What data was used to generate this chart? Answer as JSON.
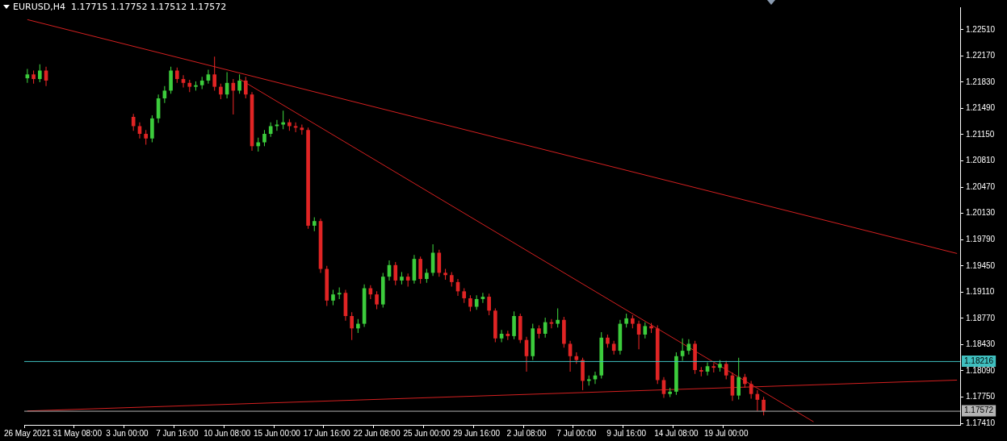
{
  "chart_data": {
    "type": "candlestick",
    "title": "EURUSD,H4  1.17715 1.17752 1.17512 1.17572",
    "categories": [
      "26 May 2021",
      null,
      null,
      null,
      null,
      null,
      null,
      null,
      "31 May 08:00",
      null,
      null,
      null,
      null,
      null,
      null,
      null,
      "3 Jun 00:00",
      null,
      null,
      null,
      null,
      null,
      null,
      null,
      "7 Jun 16:00",
      null,
      null,
      null,
      null,
      null,
      null,
      null,
      "10 Jun 08:00",
      null,
      null,
      null,
      null,
      null,
      null,
      null,
      "15 Jun 00:00",
      null,
      null,
      null,
      null,
      null,
      null,
      null,
      "17 Jun 16:00",
      null,
      null,
      null,
      null,
      null,
      null,
      null,
      "22 Jun 08:00",
      null,
      null,
      null,
      null,
      null,
      null,
      null,
      "25 Jun 00:00",
      null,
      null,
      null,
      null,
      null,
      null,
      null,
      "29 Jun 16:00",
      null,
      null,
      null,
      null,
      null,
      null,
      null,
      "2 Jul 08:00",
      null,
      null,
      null,
      null,
      null,
      null,
      null,
      "7 Jul 00:00",
      null,
      null,
      null,
      null,
      null,
      null,
      null,
      "9 Jul 16:00",
      null,
      null,
      null,
      null,
      null,
      null,
      null,
      "14 Jul 08:00",
      null,
      null,
      null,
      null,
      null,
      null,
      null,
      "19 Jul 00:00",
      null,
      null,
      null,
      null,
      null,
      null,
      null,
      null,
      null,
      null,
      null,
      null,
      null,
      null,
      null,
      null,
      null,
      null,
      null,
      null,
      null,
      null,
      null,
      null,
      null,
      null,
      null,
      null,
      null,
      null,
      null,
      null,
      null,
      null,
      null,
      null,
      null
    ],
    "ohlc": [
      [
        1.2188,
        1.22,
        1.2182,
        1.2193
      ],
      [
        1.2193,
        1.2198,
        1.2181,
        1.2187
      ],
      [
        1.2187,
        1.2206,
        1.2183,
        1.2198
      ],
      [
        1.2198,
        1.2203,
        1.2178,
        1.2185
      ],
      null,
      null,
      null,
      null,
      null,
      null,
      null,
      null,
      null,
      null,
      null,
      null,
      null,
      [
        1.2138,
        1.2142,
        1.212,
        1.2126
      ],
      [
        1.2126,
        1.2131,
        1.211,
        1.2116
      ],
      [
        1.2116,
        1.2121,
        1.2102,
        1.211
      ],
      [
        1.211,
        1.214,
        1.2105,
        1.2136
      ],
      [
        1.2136,
        1.2167,
        1.213,
        1.2162
      ],
      [
        1.2162,
        1.2178,
        1.2156,
        1.2172
      ],
      [
        1.2172,
        1.2203,
        1.2168,
        1.2198
      ],
      [
        1.2198,
        1.2202,
        1.2182,
        1.2187
      ],
      [
        1.2187,
        1.2192,
        1.2176,
        1.2182
      ],
      [
        1.2182,
        1.2186,
        1.217,
        1.2177
      ],
      [
        1.2177,
        1.2184,
        1.2172,
        1.2179
      ],
      [
        1.2179,
        1.219,
        1.2174,
        1.2185
      ],
      [
        1.2185,
        1.2199,
        1.2181,
        1.2193
      ],
      [
        1.2193,
        1.2216,
        1.2172,
        1.2177
      ],
      [
        1.2177,
        1.2181,
        1.2161,
        1.2167
      ],
      [
        1.2167,
        1.2196,
        1.2162,
        1.2182
      ],
      [
        1.2182,
        1.2187,
        1.2141,
        1.2172
      ],
      [
        1.2172,
        1.2193,
        1.2168,
        1.2185
      ],
      [
        1.2185,
        1.219,
        1.2162,
        1.2167
      ],
      [
        1.2167,
        1.217,
        1.2094,
        1.21
      ],
      [
        1.21,
        1.2111,
        1.2093,
        1.2105
      ],
      [
        1.2105,
        1.2121,
        1.21,
        1.2116
      ],
      [
        1.2116,
        1.2131,
        1.2112,
        1.2126
      ],
      [
        1.2126,
        1.2134,
        1.212,
        1.2128
      ],
      [
        1.2128,
        1.2146,
        1.2122,
        1.2131
      ],
      [
        1.2131,
        1.2135,
        1.212,
        1.2126
      ],
      [
        1.2126,
        1.2131,
        1.2118,
        1.2124
      ],
      [
        1.2124,
        1.2128,
        1.2115,
        1.2121
      ],
      [
        1.2121,
        1.2124,
        1.1993,
        1.1997
      ],
      [
        1.1997,
        1.2008,
        1.199,
        1.2003
      ],
      [
        1.2003,
        1.2006,
        1.1936,
        1.1941
      ],
      [
        1.1941,
        1.1945,
        1.1893,
        1.19
      ],
      [
        1.19,
        1.1914,
        1.1894,
        1.1908
      ],
      [
        1.1908,
        1.1917,
        1.1902,
        1.191
      ],
      [
        1.191,
        1.1914,
        1.1874,
        1.188
      ],
      [
        1.188,
        1.1885,
        1.1849,
        1.1864
      ],
      [
        1.1864,
        1.1876,
        1.1858,
        1.187
      ],
      [
        1.187,
        1.1921,
        1.1866,
        1.1916
      ],
      [
        1.1916,
        1.192,
        1.1902,
        1.1908
      ],
      [
        1.1908,
        1.1912,
        1.1889,
        1.1895
      ],
      [
        1.1895,
        1.1936,
        1.1891,
        1.1931
      ],
      [
        1.1931,
        1.1952,
        1.1926,
        1.1946
      ],
      [
        1.1946,
        1.195,
        1.192,
        1.1926
      ],
      [
        1.1926,
        1.1937,
        1.1921,
        1.1931
      ],
      [
        1.1931,
        1.1935,
        1.1918,
        1.1926
      ],
      [
        1.1926,
        1.1959,
        1.1922,
        1.1954
      ],
      [
        1.1954,
        1.1957,
        1.1922,
        1.1928
      ],
      [
        1.1928,
        1.1941,
        1.1923,
        1.1936
      ],
      [
        1.1936,
        1.1973,
        1.1932,
        1.1962
      ],
      [
        1.1962,
        1.1966,
        1.1931,
        1.1936
      ],
      [
        1.1936,
        1.1941,
        1.1927,
        1.1933
      ],
      [
        1.1933,
        1.1937,
        1.1918,
        1.1924
      ],
      [
        1.1924,
        1.1928,
        1.1906,
        1.1912
      ],
      [
        1.1912,
        1.1916,
        1.1897,
        1.1903
      ],
      [
        1.1903,
        1.1907,
        1.1886,
        1.1892
      ],
      [
        1.1892,
        1.1907,
        1.1888,
        1.1902
      ],
      [
        1.1902,
        1.191,
        1.1897,
        1.1905
      ],
      [
        1.1905,
        1.1909,
        1.1881,
        1.1887
      ],
      [
        1.1887,
        1.189,
        1.1846,
        1.1851
      ],
      [
        1.1851,
        1.1862,
        1.1846,
        1.1857
      ],
      [
        1.1857,
        1.1861,
        1.1849,
        1.1854
      ],
      [
        1.1854,
        1.1886,
        1.185,
        1.188
      ],
      [
        1.188,
        1.1883,
        1.1845,
        1.1849
      ],
      [
        1.1849,
        1.1853,
        1.1808,
        1.1828
      ],
      [
        1.1828,
        1.187,
        1.1823,
        1.1864
      ],
      [
        1.1864,
        1.1868,
        1.1851,
        1.1857
      ],
      [
        1.1857,
        1.1878,
        1.1852,
        1.1872
      ],
      [
        1.1872,
        1.1876,
        1.1864,
        1.187
      ],
      [
        1.187,
        1.189,
        1.1865,
        1.1875
      ],
      [
        1.1875,
        1.1879,
        1.1839,
        1.1844
      ],
      [
        1.1844,
        1.1848,
        1.1808,
        1.1828
      ],
      [
        1.1828,
        1.1833,
        1.1818,
        1.1823
      ],
      [
        1.1823,
        1.1826,
        1.1784,
        1.1796
      ],
      [
        1.1796,
        1.1803,
        1.179,
        1.1798
      ],
      [
        1.1798,
        1.1808,
        1.1792,
        1.1803
      ],
      [
        1.1803,
        1.1859,
        1.1799,
        1.1852
      ],
      [
        1.1852,
        1.1856,
        1.1839,
        1.1844
      ],
      [
        1.1844,
        1.1848,
        1.183,
        1.1835
      ],
      [
        1.1835,
        1.1875,
        1.183,
        1.187
      ],
      [
        1.187,
        1.1883,
        1.1865,
        1.1877
      ],
      [
        1.1877,
        1.1881,
        1.1864,
        1.187
      ],
      [
        1.187,
        1.1874,
        1.1837,
        1.1856
      ],
      [
        1.1856,
        1.1872,
        1.1851,
        1.1867
      ],
      [
        1.1867,
        1.1871,
        1.1858,
        1.1864
      ],
      [
        1.1864,
        1.1868,
        1.1792,
        1.1797
      ],
      [
        1.1797,
        1.1801,
        1.1774,
        1.1779
      ],
      [
        1.1779,
        1.1787,
        1.1775,
        1.1782
      ],
      [
        1.1782,
        1.1833,
        1.1778,
        1.1828
      ],
      [
        1.1828,
        1.1851,
        1.1822,
        1.1835
      ],
      [
        1.1835,
        1.185,
        1.183,
        1.1844
      ],
      [
        1.1844,
        1.1848,
        1.1805,
        1.181
      ],
      [
        1.181,
        1.1814,
        1.1802,
        1.1808
      ],
      [
        1.1808,
        1.182,
        1.1803,
        1.1815
      ],
      [
        1.1815,
        1.1819,
        1.1807,
        1.1813
      ],
      [
        1.1813,
        1.1823,
        1.1808,
        1.1818
      ],
      [
        1.1818,
        1.1822,
        1.1798,
        1.1803
      ],
      [
        1.1803,
        1.1807,
        1.177,
        1.1777
      ],
      [
        1.1777,
        1.1826,
        1.1772,
        1.1801
      ],
      [
        1.1801,
        1.1805,
        1.1787,
        1.1792
      ],
      [
        1.1792,
        1.1796,
        1.1773,
        1.1779
      ],
      [
        1.1779,
        1.1784,
        1.1757,
        1.17715
      ],
      [
        1.17715,
        1.17752,
        1.17512,
        1.17572
      ],
      null,
      null,
      null,
      null,
      null,
      null,
      null,
      null,
      null,
      null,
      null,
      null,
      null,
      null,
      null,
      null,
      null,
      null,
      null,
      null,
      null,
      null,
      null,
      null,
      null,
      null,
      null,
      null,
      null,
      null,
      null
    ],
    "series": [
      {
        "type": "line",
        "color": "#d42020",
        "values": [
          1.2264,
          null,
          null,
          null,
          null,
          null,
          null,
          null,
          null,
          null,
          null,
          null,
          null,
          null,
          null,
          null,
          null,
          null,
          null,
          null,
          null,
          null,
          null,
          null,
          null,
          null,
          null,
          null,
          null,
          null,
          null,
          null,
          null,
          null,
          null,
          null,
          null,
          null,
          null,
          null,
          null,
          null,
          null,
          null,
          null,
          null,
          null,
          null,
          null,
          null,
          null,
          null,
          null,
          null,
          null,
          null,
          null,
          null,
          null,
          null,
          null,
          null,
          null,
          null,
          null,
          null,
          null,
          null,
          null,
          null,
          null,
          null,
          null,
          null,
          null,
          null,
          null,
          null,
          null,
          null,
          null,
          null,
          null,
          null,
          null,
          null,
          null,
          null,
          null,
          null,
          null,
          null,
          null,
          null,
          null,
          null,
          null,
          null,
          null,
          null,
          null,
          null,
          null,
          null,
          null,
          null,
          null,
          null,
          null,
          null,
          null,
          null,
          null,
          null,
          null,
          null,
          null,
          null,
          null,
          null,
          null,
          null,
          null,
          null,
          null,
          null,
          null,
          null,
          null,
          null,
          null,
          null,
          null,
          null,
          null,
          null,
          null,
          null,
          null,
          null,
          null,
          null,
          null,
          null,
          null,
          null,
          null,
          null,
          null,
          1.1961
        ]
      },
      {
        "type": "line",
        "color": "#d42020",
        "values": [
          null,
          null,
          null,
          null,
          null,
          null,
          null,
          null,
          null,
          null,
          null,
          null,
          null,
          null,
          null,
          null,
          null,
          null,
          null,
          null,
          null,
          null,
          null,
          null,
          null,
          null,
          null,
          null,
          null,
          null,
          null,
          null,
          null,
          null,
          1.2187,
          null,
          null,
          null,
          null,
          null,
          null,
          null,
          null,
          null,
          null,
          null,
          null,
          null,
          null,
          null,
          null,
          null,
          null,
          null,
          null,
          null,
          null,
          null,
          null,
          null,
          null,
          null,
          null,
          null,
          null,
          null,
          null,
          null,
          null,
          null,
          null,
          null,
          null,
          null,
          null,
          null,
          null,
          null,
          null,
          null,
          null,
          null,
          null,
          null,
          null,
          null,
          null,
          null,
          null,
          null,
          null,
          null,
          null,
          null,
          null,
          null,
          null,
          null,
          null,
          null,
          null,
          null,
          null,
          null,
          null,
          null,
          null,
          null,
          null,
          null,
          null,
          null,
          null,
          null,
          null,
          null,
          null,
          null,
          null,
          null,
          null,
          null,
          null,
          null,
          null,
          null,
          1.1743,
          null,
          null,
          null,
          null,
          null,
          null,
          null,
          null,
          null,
          null,
          null,
          null,
          null,
          null,
          null,
          null,
          null,
          null,
          null,
          null,
          null,
          null,
          null
        ]
      },
      {
        "type": "line",
        "color": "#d42020",
        "values": [
          1.1757,
          null,
          null,
          null,
          null,
          null,
          null,
          null,
          null,
          null,
          null,
          null,
          null,
          null,
          null,
          null,
          null,
          null,
          null,
          null,
          null,
          null,
          null,
          null,
          null,
          null,
          null,
          null,
          null,
          null,
          null,
          null,
          null,
          null,
          null,
          null,
          null,
          null,
          null,
          null,
          null,
          null,
          null,
          null,
          null,
          null,
          null,
          null,
          null,
          null,
          null,
          null,
          null,
          null,
          null,
          null,
          null,
          null,
          null,
          null,
          null,
          null,
          null,
          null,
          null,
          null,
          null,
          null,
          null,
          null,
          null,
          null,
          null,
          null,
          null,
          null,
          null,
          null,
          null,
          null,
          null,
          null,
          null,
          null,
          null,
          null,
          null,
          null,
          null,
          null,
          null,
          null,
          null,
          null,
          null,
          null,
          null,
          null,
          null,
          null,
          null,
          null,
          null,
          null,
          null,
          null,
          null,
          null,
          null,
          null,
          null,
          null,
          null,
          null,
          null,
          null,
          null,
          null,
          null,
          null,
          null,
          null,
          null,
          null,
          null,
          null,
          null,
          null,
          null,
          null,
          null,
          null,
          null,
          null,
          null,
          null,
          null,
          null,
          null,
          null,
          null,
          null,
          null,
          null,
          null,
          null,
          null,
          null,
          null,
          1.1797
        ]
      }
    ],
    "ref_lines": [
      {
        "axis": "y",
        "value": 1.18216,
        "label": "1.18216",
        "color": "#3fbfbf"
      },
      {
        "axis": "y",
        "value": 1.17572,
        "label": "1.17572",
        "color": "#b4b4b4"
      }
    ],
    "ylim": [
      1.1739,
      1.228
    ],
    "yticks": [
      {
        "value": 1.2251,
        "label": "1.22510"
      },
      {
        "value": 1.2217,
        "label": "1.22170"
      },
      {
        "value": 1.2183,
        "label": "1.21830"
      },
      {
        "value": 1.2149,
        "label": "1.21490"
      },
      {
        "value": 1.2115,
        "label": "1.21150"
      },
      {
        "value": 1.2081,
        "label": "1.20810"
      },
      {
        "value": 1.2047,
        "label": "1.20470"
      },
      {
        "value": 1.2013,
        "label": "1.20130"
      },
      {
        "value": 1.1979,
        "label": "1.19790"
      },
      {
        "value": 1.1945,
        "label": "1.19450"
      },
      {
        "value": 1.1911,
        "label": "1.19110"
      },
      {
        "value": 1.1877,
        "label": "1.18770"
      },
      {
        "value": 1.1843,
        "label": "1.18430"
      },
      {
        "value": 1.1809,
        "label": "1.18090"
      },
      {
        "value": 1.1775,
        "label": "1.17750"
      },
      {
        "value": 1.1741,
        "label": "1.17410"
      }
    ],
    "grid": false,
    "legend": false
  }
}
